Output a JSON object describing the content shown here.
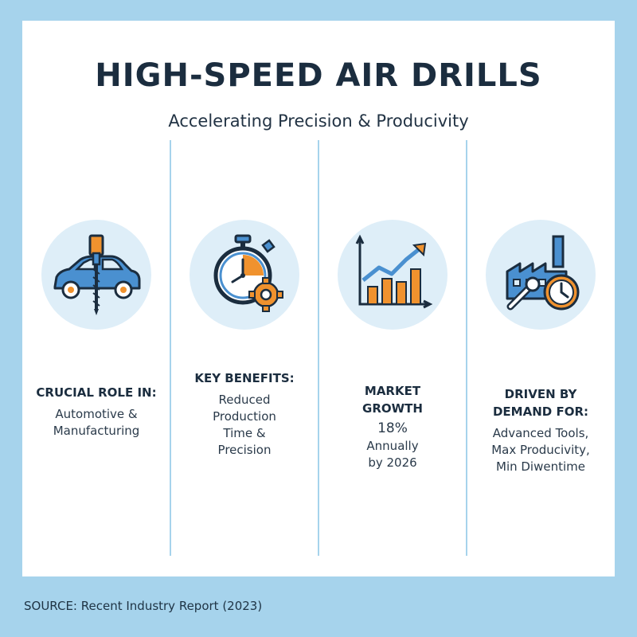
{
  "title": "HIGH-SPEED AIR DRILLS",
  "subtitle": "Accelerating Precision & Producivity",
  "columns": [
    {
      "icon": "car-drill-icon",
      "heading": "CRUCIAL ROLE IN:",
      "body": "Automotive &\nManufacturing"
    },
    {
      "icon": "stopwatch-gear-icon",
      "heading": "KEY BENEFITS:",
      "body": "Reduced\nProduction\nTime &\nPrecision"
    },
    {
      "icon": "growth-chart-icon",
      "heading": "MARKET\nGROWTH",
      "stat": "18%",
      "body": "Annually\nby 2026"
    },
    {
      "icon": "factory-clock-icon",
      "heading": "DRIVEN BY\nDEMAND FOR:",
      "body": "Advanced Tools,\nMax Producivity,\nMin Diwentime"
    }
  ],
  "source": "SOURCE: Recent Industry Report (2023)",
  "colors": {
    "background": "#a6d3ec",
    "navy": "#1b2d3f",
    "blue": "#4a90d0",
    "orange": "#f0922e",
    "circle": "#deeef8"
  }
}
